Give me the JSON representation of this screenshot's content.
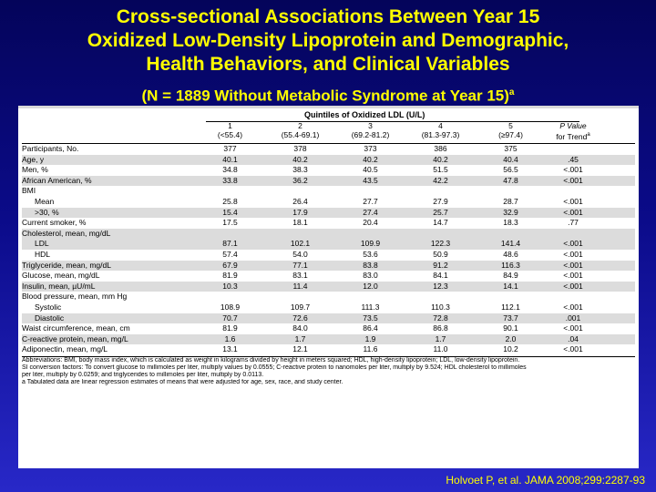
{
  "title": {
    "line1": "Cross-sectional Associations Between Year 15",
    "line2": "Oxidized Low-Density Lipoprotein and Demographic,",
    "line3": "Health Behaviors, and Clinical Variables",
    "subtitle": "(N = 1889 Without Metabolic Syndrome at Year 15)",
    "subtitle_sup": "a"
  },
  "table": {
    "group_header": "Quintiles of Oxidized LDL (U/L)",
    "columns": [
      {
        "num": "1",
        "range": "(<55.4)"
      },
      {
        "num": "2",
        "range": "(55.4-69.1)"
      },
      {
        "num": "3",
        "range": "(69.2-81.2)"
      },
      {
        "num": "4",
        "range": "(81.3-97.3)"
      },
      {
        "num": "5",
        "range": "(≥97.4)"
      }
    ],
    "p_header_1": "P Value",
    "p_header_2": "for Trend",
    "p_header_sup": "a",
    "rows": [
      {
        "label": "Participants, No.",
        "vals": [
          "377",
          "378",
          "373",
          "386",
          "375"
        ],
        "p": "",
        "shade": false,
        "sub": false
      },
      {
        "label": "Age, y",
        "vals": [
          "40.1",
          "40.2",
          "40.2",
          "40.2",
          "40.4"
        ],
        "p": ".45",
        "shade": true,
        "sub": false
      },
      {
        "label": "Men, %",
        "vals": [
          "34.8",
          "38.3",
          "40.5",
          "51.5",
          "56.5"
        ],
        "p": "<.001",
        "shade": false,
        "sub": false
      },
      {
        "label": "African American, %",
        "vals": [
          "33.8",
          "36.2",
          "43.5",
          "42.2",
          "47.8"
        ],
        "p": "<.001",
        "shade": true,
        "sub": false
      },
      {
        "label": "BMI",
        "vals": [
          "",
          "",
          "",
          "",
          ""
        ],
        "p": "",
        "shade": false,
        "sub": false
      },
      {
        "label": "Mean",
        "vals": [
          "25.8",
          "26.4",
          "27.7",
          "27.9",
          "28.7"
        ],
        "p": "<.001",
        "shade": false,
        "sub": true
      },
      {
        "label": ">30, %",
        "vals": [
          "15.4",
          "17.9",
          "27.4",
          "25.7",
          "32.9"
        ],
        "p": "<.001",
        "shade": true,
        "sub": true
      },
      {
        "label": "Current smoker, %",
        "vals": [
          "17.5",
          "18.1",
          "20.4",
          "14.7",
          "18.3"
        ],
        "p": ".77",
        "shade": false,
        "sub": false
      },
      {
        "label": "Cholesterol, mean, mg/dL",
        "vals": [
          "",
          "",
          "",
          "",
          ""
        ],
        "p": "",
        "shade": true,
        "sub": false
      },
      {
        "label": "LDL",
        "vals": [
          "87.1",
          "102.1",
          "109.9",
          "122.3",
          "141.4"
        ],
        "p": "<.001",
        "shade": true,
        "sub": true
      },
      {
        "label": "HDL",
        "vals": [
          "57.4",
          "54.0",
          "53.6",
          "50.9",
          "48.6"
        ],
        "p": "<.001",
        "shade": false,
        "sub": true
      },
      {
        "label": "Triglyceride, mean, mg/dL",
        "vals": [
          "67.9",
          "77.1",
          "83.8",
          "91.2",
          "116.3"
        ],
        "p": "<.001",
        "shade": true,
        "sub": false
      },
      {
        "label": "Glucose, mean, mg/dL",
        "vals": [
          "81.9",
          "83.1",
          "83.0",
          "84.1",
          "84.9"
        ],
        "p": "<.001",
        "shade": false,
        "sub": false
      },
      {
        "label": "Insulin, mean, µU/mL",
        "vals": [
          "10.3",
          "11.4",
          "12.0",
          "12.3",
          "14.1"
        ],
        "p": "<.001",
        "shade": true,
        "sub": false
      },
      {
        "label": "Blood pressure, mean, mm Hg",
        "vals": [
          "",
          "",
          "",
          "",
          ""
        ],
        "p": "",
        "shade": false,
        "sub": false
      },
      {
        "label": "Systolic",
        "vals": [
          "108.9",
          "109.7",
          "111.3",
          "110.3",
          "112.1"
        ],
        "p": "<.001",
        "shade": false,
        "sub": true
      },
      {
        "label": "Diastolic",
        "vals": [
          "70.7",
          "72.6",
          "73.5",
          "72.8",
          "73.7"
        ],
        "p": ".001",
        "shade": true,
        "sub": true
      },
      {
        "label": "Waist circumference, mean, cm",
        "vals": [
          "81.9",
          "84.0",
          "86.4",
          "86.8",
          "90.1"
        ],
        "p": "<.001",
        "shade": false,
        "sub": false
      },
      {
        "label": "C-reactive protein, mean, mg/L",
        "vals": [
          "1.6",
          "1.7",
          "1.9",
          "1.7",
          "2.0"
        ],
        "p": ".04",
        "shade": true,
        "sub": false
      },
      {
        "label": "Adiponectin, mean, mg/L",
        "vals": [
          "13.1",
          "12.1",
          "11.6",
          "11.0",
          "10.2"
        ],
        "p": "<.001",
        "shade": false,
        "sub": false
      }
    ],
    "footnotes": [
      "Abbreviations: BMI, body mass index, which is calculated as weight in kilograms divided by height in meters squared; HDL, high-density lipoprotein; LDL, low-density lipoprotein.",
      "SI conversion factors: To convert glucose to millimoles per liter, multiply values by 0.0555; C-reactive protein to nanomoles per liter, multiply by 9.524; HDL cholesterol to millimoles",
      "    per liter, multiply by 0.0259; and triglycerides to millimoles per liter, multiply by 0.0113.",
      "a Tabulated data are linear regression estimates of means that were adjusted for age, sex, race, and study center."
    ]
  },
  "citation": "Holvoet P, et al. JAMA 2008;299:2287-93"
}
